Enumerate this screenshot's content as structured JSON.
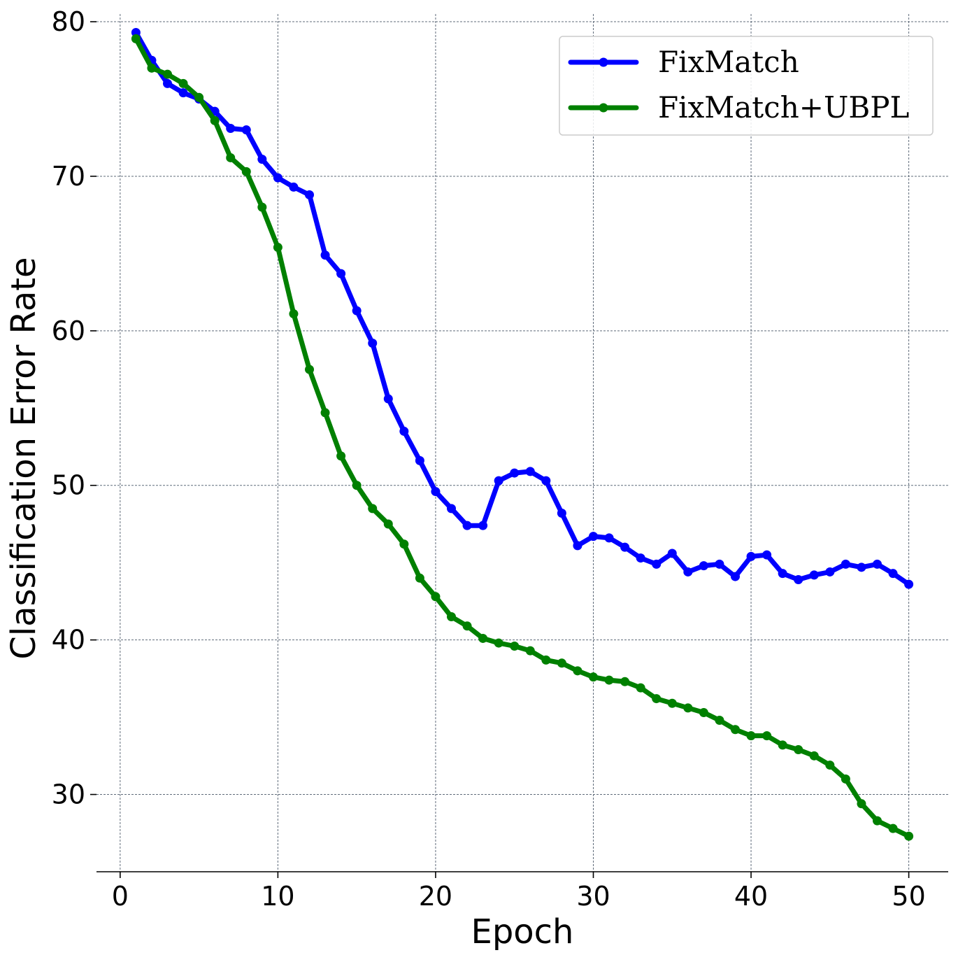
{
  "chart_data": {
    "type": "line",
    "title": "",
    "xlabel": "Epoch",
    "ylabel": "Classification Error Rate",
    "xlim": [
      -1.5,
      52.5
    ],
    "ylim": [
      25,
      80.5
    ],
    "xticks": [
      0,
      10,
      20,
      30,
      40,
      50
    ],
    "yticks": [
      30,
      40,
      50,
      60,
      70,
      80
    ],
    "grid": true,
    "legend_position": "top-right",
    "x": [
      1,
      2,
      3,
      4,
      5,
      6,
      7,
      8,
      9,
      10,
      11,
      12,
      13,
      14,
      15,
      16,
      17,
      18,
      19,
      20,
      21,
      22,
      23,
      24,
      25,
      26,
      27,
      28,
      29,
      30,
      31,
      32,
      33,
      34,
      35,
      36,
      37,
      38,
      39,
      40,
      41,
      42,
      43,
      44,
      45,
      46,
      47,
      48,
      49,
      50
    ],
    "series": [
      {
        "name": "FixMatch",
        "color": "#0000ff",
        "values": [
          79.3,
          77.5,
          76.0,
          75.4,
          75.0,
          74.2,
          73.1,
          73.0,
          71.1,
          69.9,
          69.3,
          68.8,
          64.9,
          63.7,
          61.3,
          59.2,
          55.6,
          53.5,
          51.6,
          49.6,
          48.5,
          47.4,
          47.4,
          50.3,
          50.8,
          50.9,
          50.3,
          48.2,
          46.1,
          46.7,
          46.6,
          46.0,
          45.3,
          44.9,
          45.6,
          44.4,
          44.8,
          44.9,
          44.1,
          45.4,
          45.5,
          44.3,
          43.9,
          44.2,
          44.4,
          44.9,
          44.7,
          44.9,
          44.3,
          43.6
        ]
      },
      {
        "name": "FixMatch+UBPL",
        "color": "#008000",
        "values": [
          78.9,
          77.0,
          76.6,
          76.0,
          75.1,
          73.6,
          71.2,
          70.3,
          68.0,
          65.4,
          61.1,
          57.5,
          54.7,
          51.9,
          50.0,
          48.5,
          47.5,
          46.2,
          44.0,
          42.8,
          41.5,
          40.9,
          40.1,
          39.8,
          39.6,
          39.3,
          38.7,
          38.5,
          38.0,
          37.6,
          37.4,
          37.3,
          36.9,
          36.2,
          35.9,
          35.6,
          35.3,
          34.8,
          34.2,
          33.8,
          33.8,
          33.2,
          32.9,
          32.5,
          31.9,
          31.0,
          29.4,
          28.3,
          27.8,
          27.3
        ]
      }
    ]
  }
}
